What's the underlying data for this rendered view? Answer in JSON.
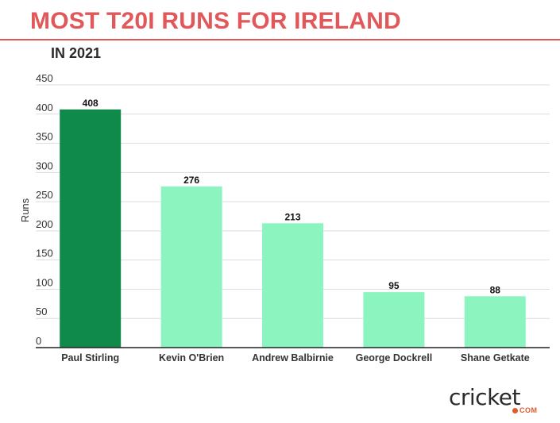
{
  "header": {
    "title": "MOST T20I RUNS FOR IRELAND",
    "subtitle": "IN 2021"
  },
  "colors": {
    "title": "#e2585a",
    "highlight_bar": "#0f8a4a",
    "bar": "#8cf5bf",
    "grid": "#dddddd",
    "axis": "#222222"
  },
  "logo": {
    "main_text": "cricket",
    "sub_text": "COM"
  },
  "chart_data": {
    "type": "bar",
    "categories": [
      "Paul Stirling",
      "Kevin O'Brien",
      "Andrew Balbirnie",
      "George Dockrell",
      "Shane Getkate"
    ],
    "values": [
      408,
      276,
      213,
      95,
      88
    ],
    "highlight_index": 0,
    "xlabel": "",
    "ylabel": "Runs",
    "ylim": [
      0,
      450
    ],
    "yticks": [
      0,
      50,
      100,
      150,
      200,
      250,
      300,
      350,
      400,
      450
    ],
    "grid": true,
    "legend": "none"
  }
}
